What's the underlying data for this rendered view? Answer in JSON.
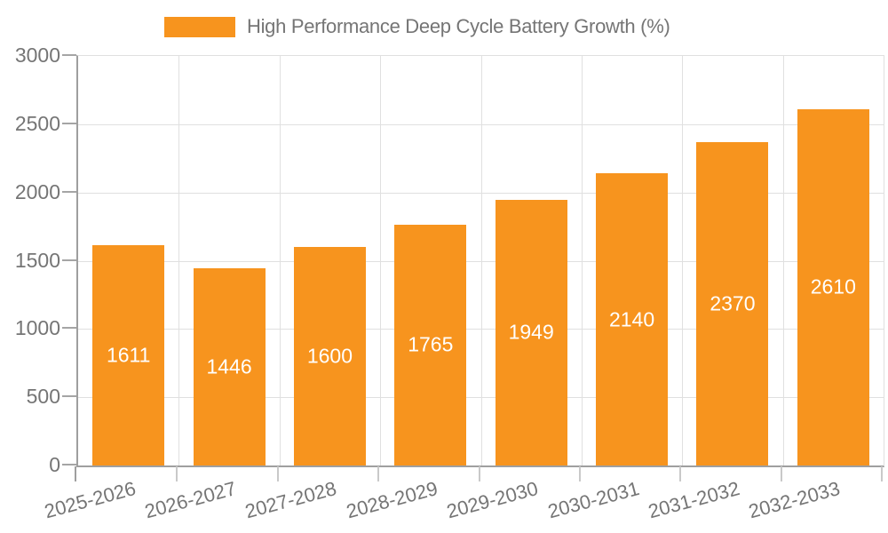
{
  "legend": {
    "label": "High Performance Deep Cycle Battery Growth (%)"
  },
  "chart_data": {
    "type": "bar",
    "title": "High Performance Deep Cycle Battery Growth (%)",
    "categories": [
      "2025-2026",
      "2026-2027",
      "2027-2028",
      "2028-2029",
      "2029-2030",
      "2030-2031",
      "2031-2032",
      "2032-2033"
    ],
    "series": [
      {
        "name": "High Performance Deep Cycle Battery Growth (%)",
        "values": [
          1611,
          1446,
          1600,
          1765,
          1949,
          2140,
          2370,
          2610
        ]
      }
    ],
    "xlabel": "",
    "ylabel": "",
    "ylim": [
      0,
      3000
    ],
    "yticks": [
      0,
      500,
      1000,
      1500,
      2000,
      2500,
      3000
    ],
    "grid": true,
    "legend_position": "top-center",
    "value_label_position": "inside-center",
    "value_label_color": "#ffffff"
  },
  "colors": {
    "bar": "#F7941E",
    "axis_line": "#9f9f9f",
    "grid_line": "#e0e0e0",
    "minor_tick": "#c9c9c9",
    "text": "#757575",
    "background": "#ffffff"
  }
}
